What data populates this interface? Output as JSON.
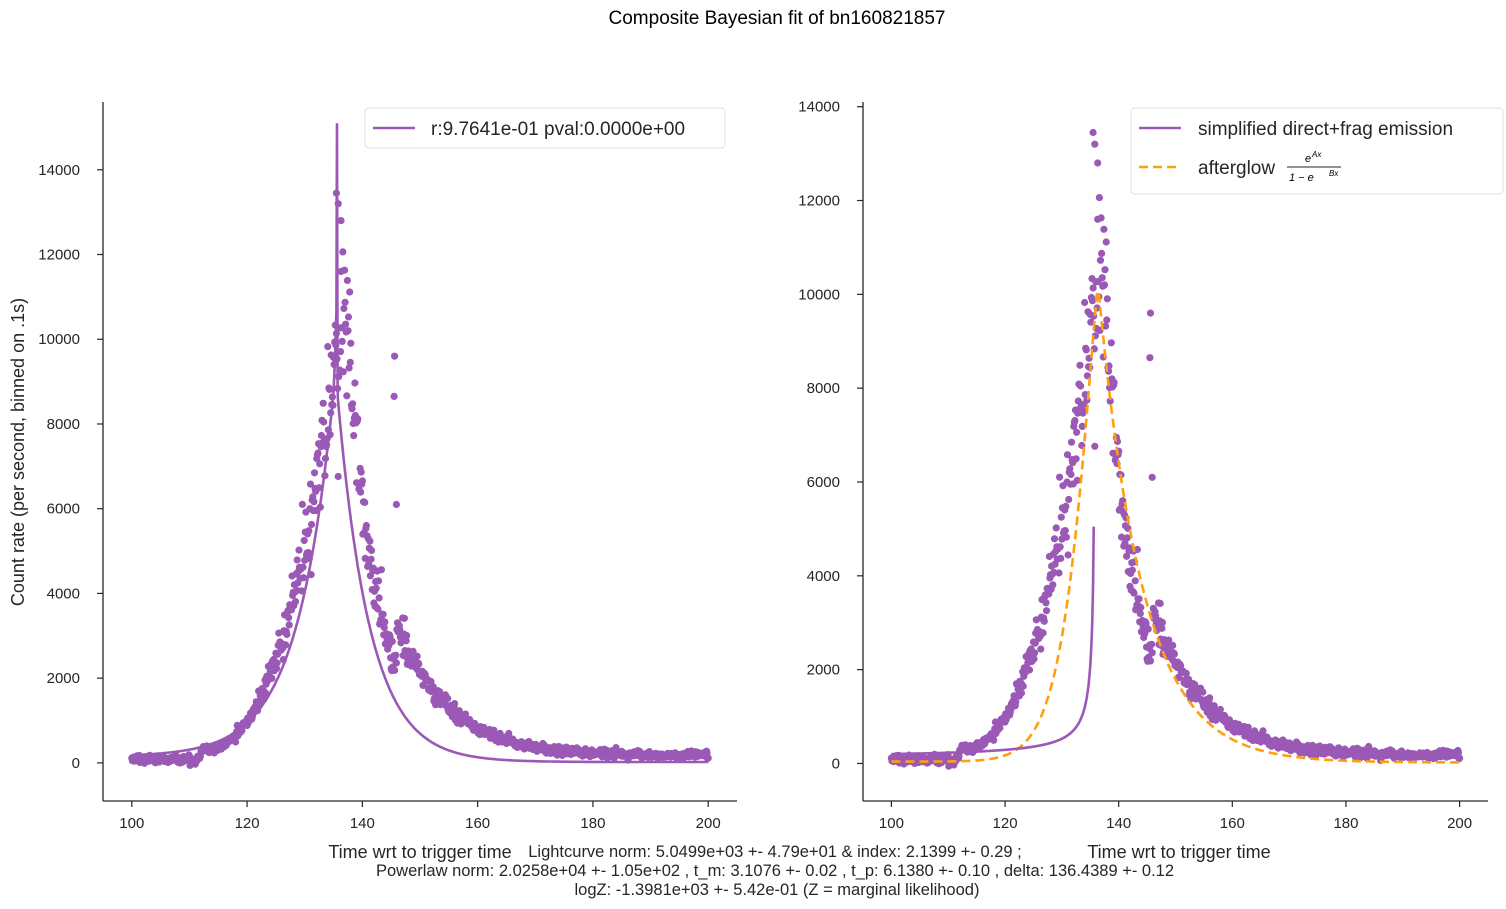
{
  "figure": {
    "title": "Composite Bayesian fit of bn160821857",
    "footer": [
      "Lightcurve norm: 5.0499e+03 +- 4.79e+01 & index: 2.1399 +- 0.29 ;",
      "Powerlaw norm: 2.0258e+04 +- 1.05e+02 , t_m: 3.1076 +- 0.02 , t_p: 6.1380 +- 0.10 , delta: 136.4389 +- 0.12",
      "logZ: -1.3981e+03 +- 5.42e-01 (Z = marginal likelihood)"
    ]
  },
  "chart_data": [
    {
      "type": "scatter",
      "title": "",
      "xlabel": "Time wrt to trigger time",
      "ylabel": "Count rate (per second, binned on .1s)",
      "xlim": [
        95,
        205
      ],
      "ylim": [
        -900,
        15600
      ],
      "xticks": [
        100,
        120,
        140,
        160,
        180,
        200
      ],
      "yticks": [
        0,
        2000,
        4000,
        6000,
        8000,
        10000,
        12000,
        14000
      ],
      "grid": false,
      "legend_position": "top-right",
      "series": [
        {
          "name": "",
          "kind": "points",
          "color": "#9b59b6",
          "description": "binned count-rate data points, one per 0.1 s from t=100 to t=200"
        },
        {
          "name": "r:9.7641e-01  pval:0.0000e+00",
          "kind": "line",
          "color": "#9b59b6",
          "description": "combined fit model, spike to ~15100 at t~135.6"
        }
      ]
    },
    {
      "type": "scatter",
      "title": "",
      "xlabel": "Time wrt to trigger time",
      "ylabel": "",
      "xlim": [
        95,
        205
      ],
      "ylim": [
        -800,
        14100
      ],
      "xticks": [
        100,
        120,
        140,
        160,
        180,
        200
      ],
      "yticks": [
        0,
        2000,
        4000,
        6000,
        8000,
        10000,
        12000,
        14000
      ],
      "grid": false,
      "legend_position": "top-right",
      "series": [
        {
          "name": "",
          "kind": "points",
          "color": "#9b59b6",
          "description": "binned count-rate data points, one per 0.1 s from t=100 to t=200"
        },
        {
          "name": "simplified direct+frag emission",
          "kind": "line",
          "color": "#9b59b6",
          "description": "power-law component rising from ~250 to ~5000 at t~135.6"
        },
        {
          "name": "afterglow",
          "name_formula": "e^{Ax} / (1 - e^{Bx})",
          "kind": "dashed-line",
          "color": "#ff9f0e",
          "description": "smooth afterglow curve peaking ~10200 at t~136.4"
        }
      ]
    }
  ],
  "legend_formula": {
    "numerator": "Ax",
    "denominator": "Bx",
    "one_minus": "1 − e"
  }
}
